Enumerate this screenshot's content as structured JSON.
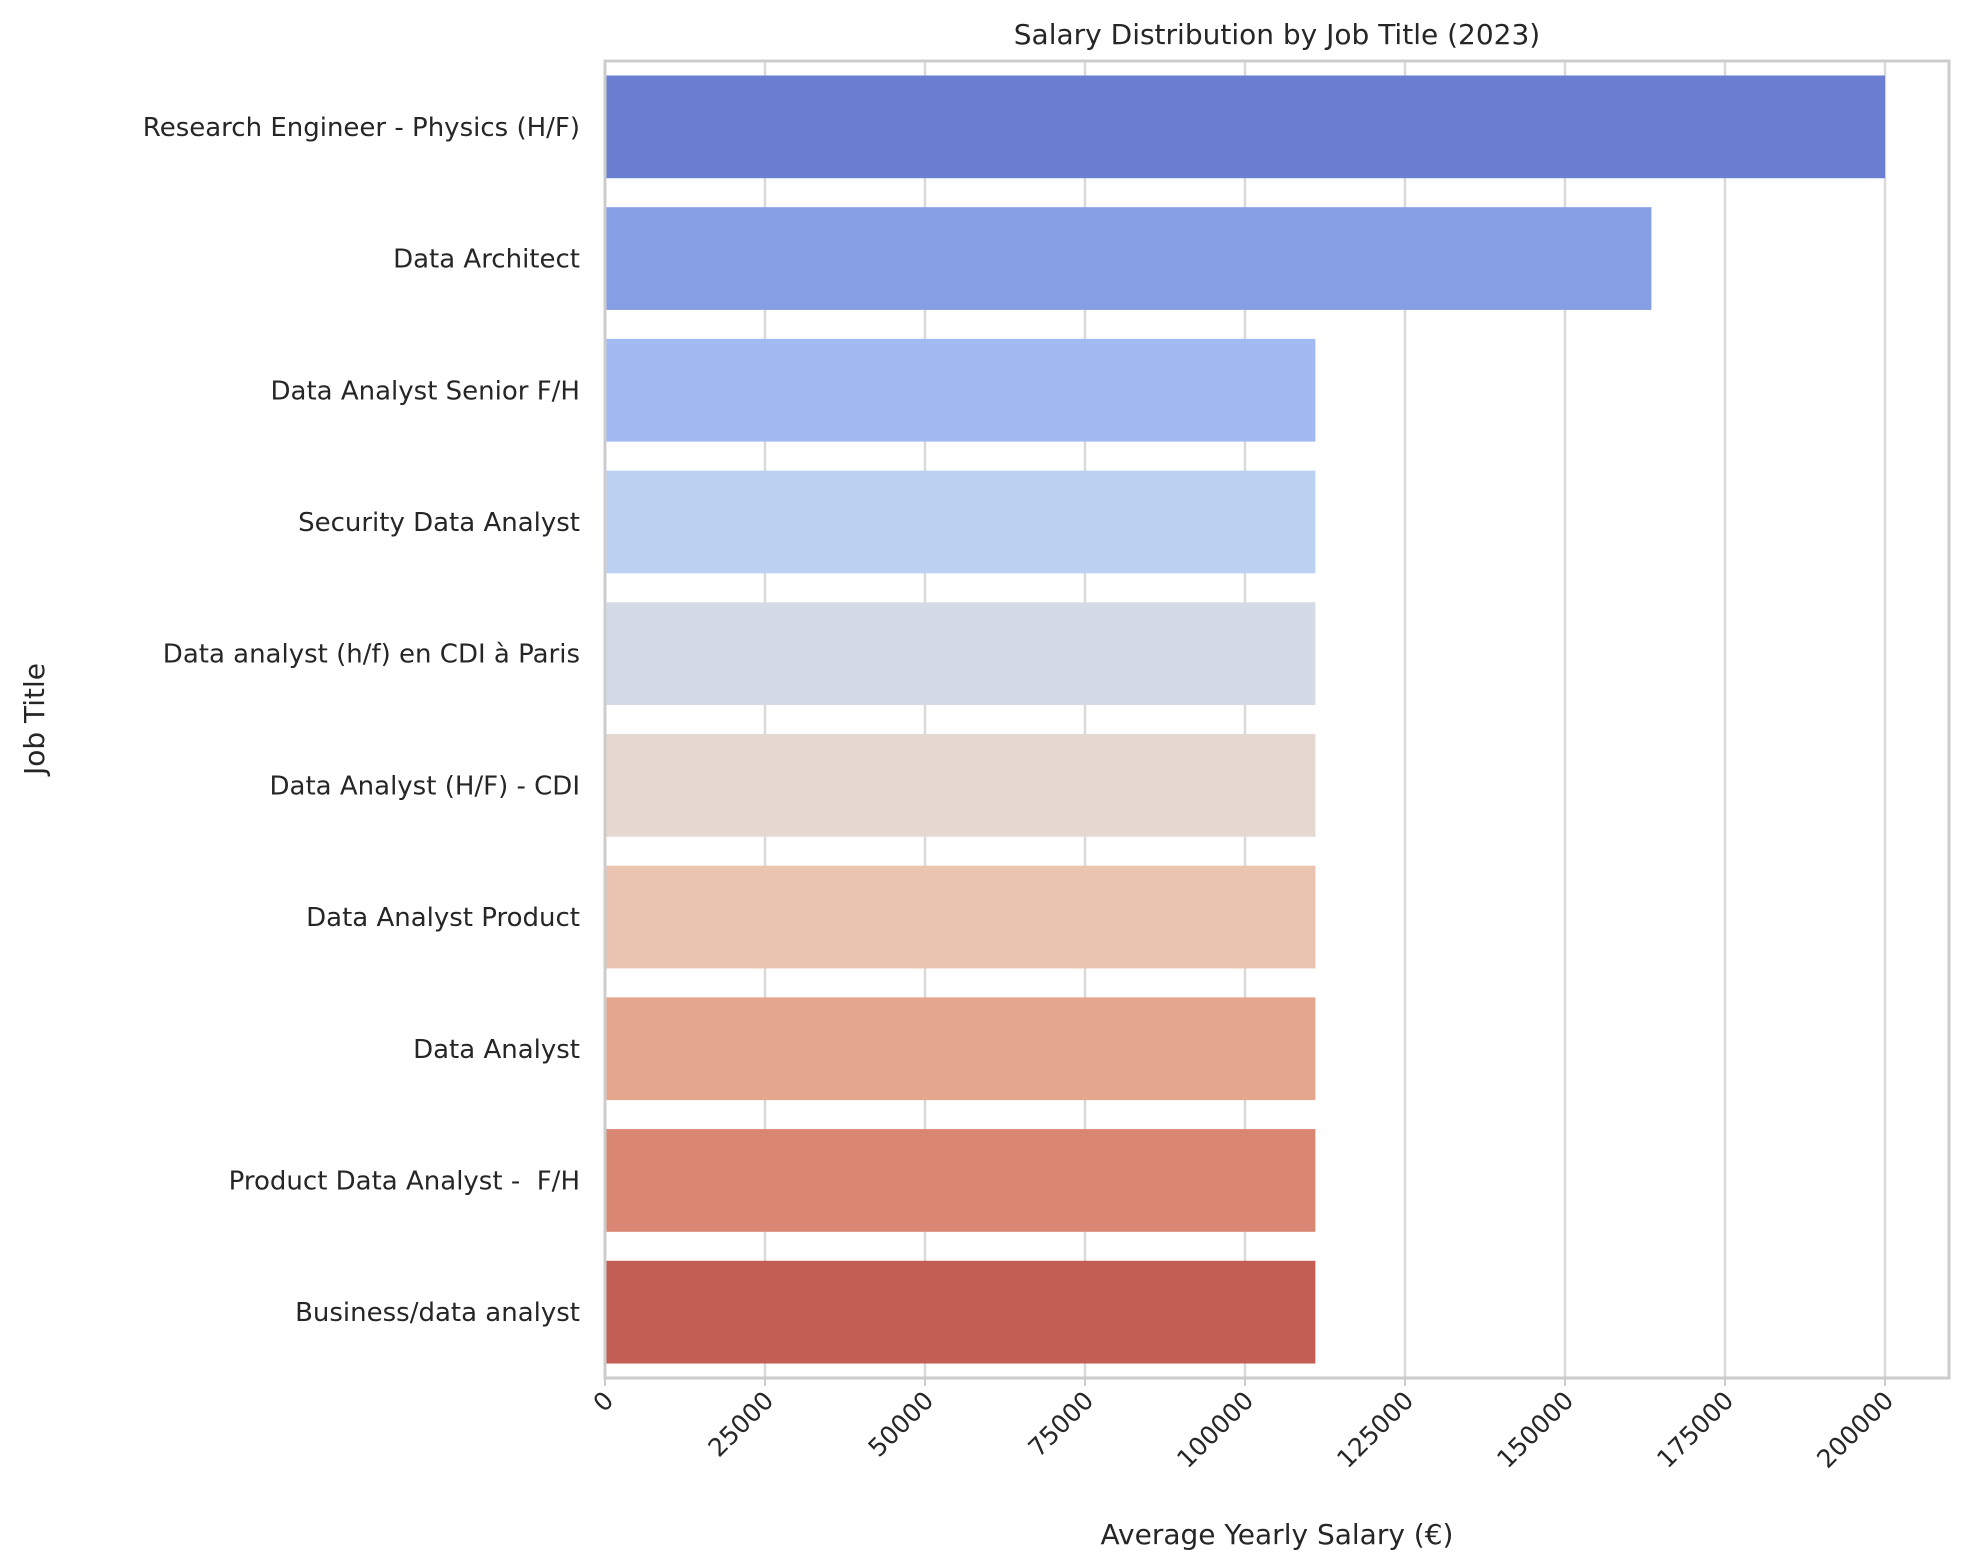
{
  "chart_data": {
    "type": "bar",
    "orientation": "horizontal",
    "title": "Salary Distribution by Job Title (2023)",
    "xlabel": "Average Yearly Salary (€)",
    "ylabel": "Job Title",
    "xlim": [
      0,
      210000
    ],
    "xticks": [
      0,
      25000,
      50000,
      75000,
      100000,
      125000,
      150000,
      175000,
      200000
    ],
    "xtick_labels": [
      "0",
      "25000",
      "50000",
      "75000",
      "100000",
      "125000",
      "150000",
      "175000",
      "200000"
    ],
    "grid": true,
    "categories": [
      "Research Engineer - Physics (H/F)",
      "Data Architect",
      "Data Analyst Senior F/H",
      "Security Data Analyst",
      "Data analyst (h/f) en CDI à Paris",
      "Data Analyst (H/F) - CDI",
      "Data Analyst Product",
      "Data Analyst",
      "Product Data Analyst -  F/H",
      "Business/data analyst"
    ],
    "values": [
      200000,
      163500,
      111000,
      111000,
      111000,
      111000,
      111000,
      111000,
      111000,
      111000
    ],
    "colors": [
      "#6a7fd1",
      "#869fe4",
      "#a1baf2",
      "#bcd0f1",
      "#d5dbe6",
      "#e5d8d1",
      "#eac4b1",
      "#e5a68e",
      "#d98672",
      "#c25e53"
    ]
  }
}
